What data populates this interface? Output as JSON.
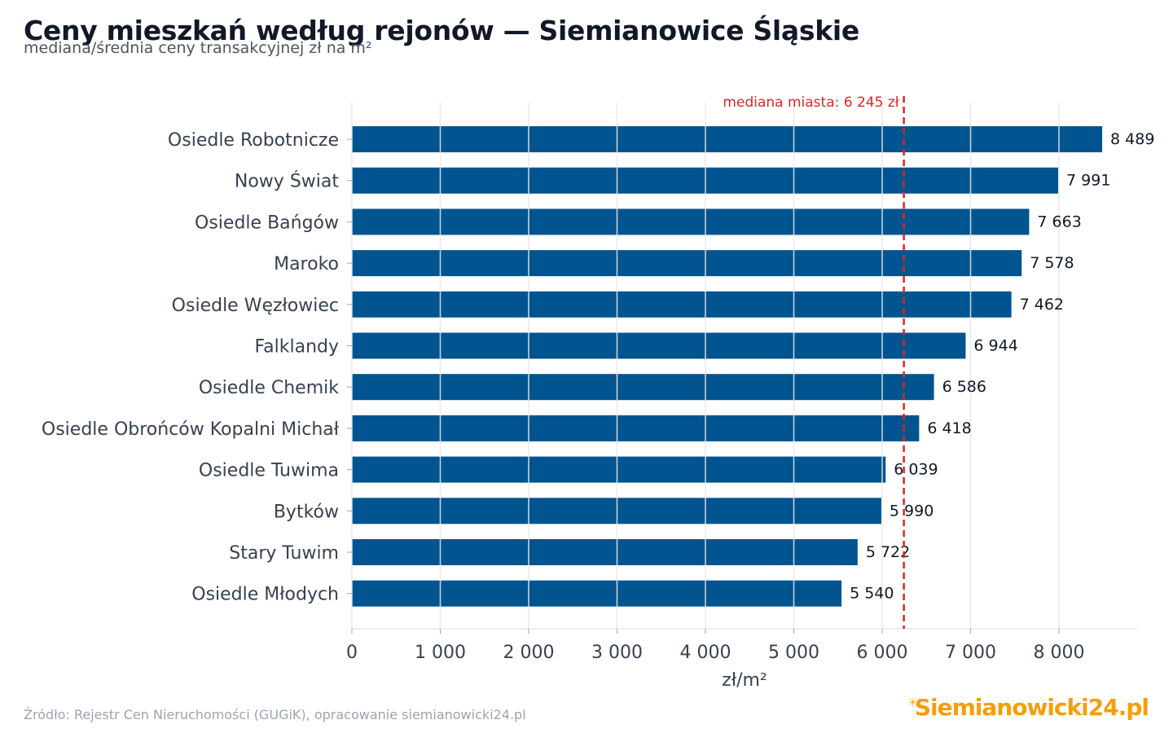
{
  "header": {
    "title": "Ceny mieszkań według rejonów — Siemianowice Śląskie",
    "subtitle": "mediana/średnia ceny transakcyjnej zł na m²"
  },
  "footer": {
    "source": "Źródło: Rejestr Cen Nieruchomości (GUGiK), opracowanie siemianowicki24.pl",
    "logo_text": "Siemianowicki24.pl"
  },
  "colors": {
    "bar": "#00548f",
    "median_line": "#dc2626",
    "grid": "#e5e7eb",
    "text": "#374151"
  },
  "chart_data": {
    "type": "bar",
    "orientation": "horizontal",
    "categories": [
      "Osiedle Robotnicze",
      "Nowy Świat",
      "Osiedle Bańgów",
      "Maroko",
      "Osiedle Węzłowiec",
      "Falklandy",
      "Osiedle Chemik",
      "Osiedle Obrońców Kopalni Michał",
      "Osiedle Tuwima",
      "Bytków",
      "Stary Tuwim",
      "Osiedle Młodych"
    ],
    "values": [
      8489,
      7991,
      7663,
      7578,
      7462,
      6944,
      6586,
      6418,
      6039,
      5990,
      5722,
      5540
    ],
    "value_labels": [
      "8 489",
      "7 991",
      "7 663",
      "7 578",
      "7 462",
      "6 944",
      "6 586",
      "6 418",
      "6 039",
      "5 990",
      "5 722",
      "5 540"
    ],
    "xlabel": "zł/m²",
    "ylabel": "",
    "xlim": [
      0,
      8900
    ],
    "xticks": [
      0,
      1000,
      2000,
      3000,
      4000,
      5000,
      6000,
      7000,
      8000
    ],
    "xtick_labels": [
      "0",
      "1 000",
      "2 000",
      "3 000",
      "4 000",
      "5 000",
      "6 000",
      "7 000",
      "8 000"
    ],
    "grid": true,
    "reference_line": {
      "value": 6245,
      "label": "mediana miasta: 6 245 zł",
      "style": "dashed"
    }
  }
}
